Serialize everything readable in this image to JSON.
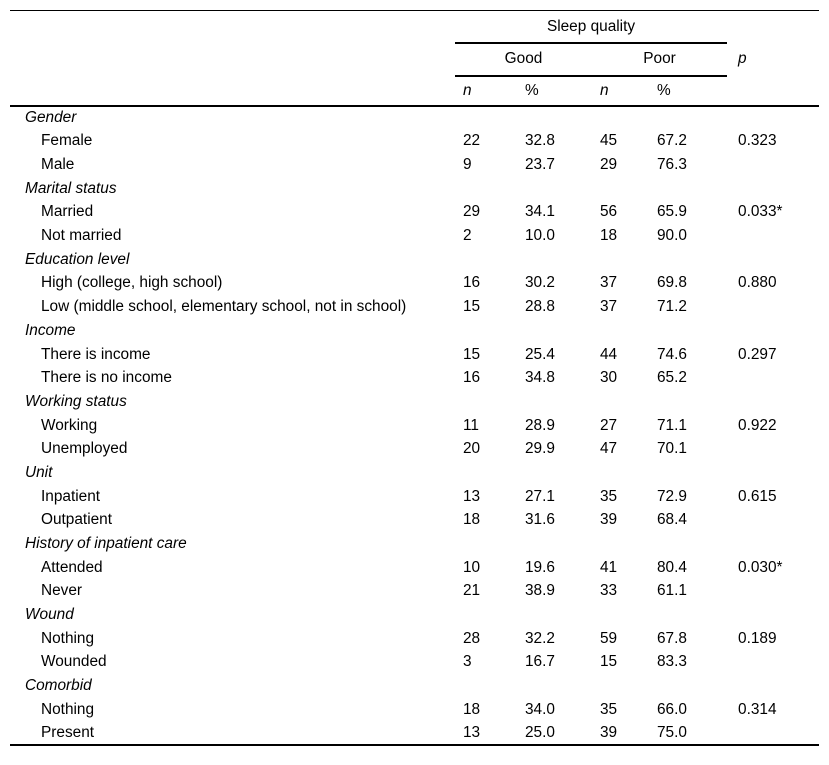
{
  "page": {
    "background": "#ffffff",
    "text_color": "#000000",
    "rule_color": "#000000"
  },
  "table": {
    "header": {
      "span_title": "Sleep quality",
      "good_label": "Good",
      "poor_label": "Poor",
      "p_label": "p",
      "sub_headers": [
        "n",
        "%",
        "n",
        "%"
      ]
    },
    "groups": [
      {
        "label": "Gender",
        "rows": [
          {
            "label": "Female",
            "good_n": "22",
            "good_pct": "32.8",
            "poor_n": "45",
            "poor_pct": "67.2",
            "p": "0.323"
          },
          {
            "label": "Male",
            "good_n": "9",
            "good_pct": "23.7",
            "poor_n": "29",
            "poor_pct": "76.3",
            "p": ""
          }
        ]
      },
      {
        "label": "Marital status",
        "rows": [
          {
            "label": "Married",
            "good_n": "29",
            "good_pct": "34.1",
            "poor_n": "56",
            "poor_pct": "65.9",
            "p": "0.033*"
          },
          {
            "label": "Not married",
            "good_n": "2",
            "good_pct": "10.0",
            "poor_n": "18",
            "poor_pct": "90.0",
            "p": ""
          }
        ]
      },
      {
        "label": "Education level",
        "rows": [
          {
            "label": "High (college, high school)",
            "good_n": "16",
            "good_pct": "30.2",
            "poor_n": "37",
            "poor_pct": "69.8",
            "p": "0.880"
          },
          {
            "label": "Low (middle school, elementary school, not in school)",
            "good_n": "15",
            "good_pct": "28.8",
            "poor_n": "37",
            "poor_pct": "71.2",
            "p": ""
          }
        ]
      },
      {
        "label": "Income",
        "rows": [
          {
            "label": "There is income",
            "good_n": "15",
            "good_pct": "25.4",
            "poor_n": "44",
            "poor_pct": "74.6",
            "p": "0.297"
          },
          {
            "label": "There is no income",
            "good_n": "16",
            "good_pct": "34.8",
            "poor_n": "30",
            "poor_pct": "65.2",
            "p": ""
          }
        ]
      },
      {
        "label": "Working status",
        "rows": [
          {
            "label": "Working",
            "good_n": "11",
            "good_pct": "28.9",
            "poor_n": "27",
            "poor_pct": "71.1",
            "p": "0.922"
          },
          {
            "label": "Unemployed",
            "good_n": "20",
            "good_pct": "29.9",
            "poor_n": "47",
            "poor_pct": "70.1",
            "p": ""
          }
        ]
      },
      {
        "label": "Unit",
        "rows": [
          {
            "label": "Inpatient",
            "good_n": "13",
            "good_pct": "27.1",
            "poor_n": "35",
            "poor_pct": "72.9",
            "p": "0.615"
          },
          {
            "label": "Outpatient",
            "good_n": "18",
            "good_pct": "31.6",
            "poor_n": "39",
            "poor_pct": "68.4",
            "p": ""
          }
        ]
      },
      {
        "label": "History of inpatient care",
        "rows": [
          {
            "label": "Attended",
            "good_n": "10",
            "good_pct": "19.6",
            "poor_n": "41",
            "poor_pct": "80.4",
            "p": "0.030*"
          },
          {
            "label": "Never",
            "good_n": "21",
            "good_pct": "38.9",
            "poor_n": "33",
            "poor_pct": "61.1",
            "p": ""
          }
        ]
      },
      {
        "label": "Wound",
        "rows": [
          {
            "label": "Nothing",
            "good_n": "28",
            "good_pct": "32.2",
            "poor_n": "59",
            "poor_pct": "67.8",
            "p": "0.189"
          },
          {
            "label": "Wounded",
            "good_n": "3",
            "good_pct": "16.7",
            "poor_n": "15",
            "poor_pct": "83.3",
            "p": ""
          }
        ]
      },
      {
        "label": "Comorbid",
        "rows": [
          {
            "label": "Nothing",
            "good_n": "18",
            "good_pct": "34.0",
            "poor_n": "35",
            "poor_pct": "66.0",
            "p": "0.314"
          },
          {
            "label": "Present",
            "good_n": "13",
            "good_pct": "25.0",
            "poor_n": "39",
            "poor_pct": "75.0",
            "p": ""
          }
        ]
      }
    ]
  }
}
